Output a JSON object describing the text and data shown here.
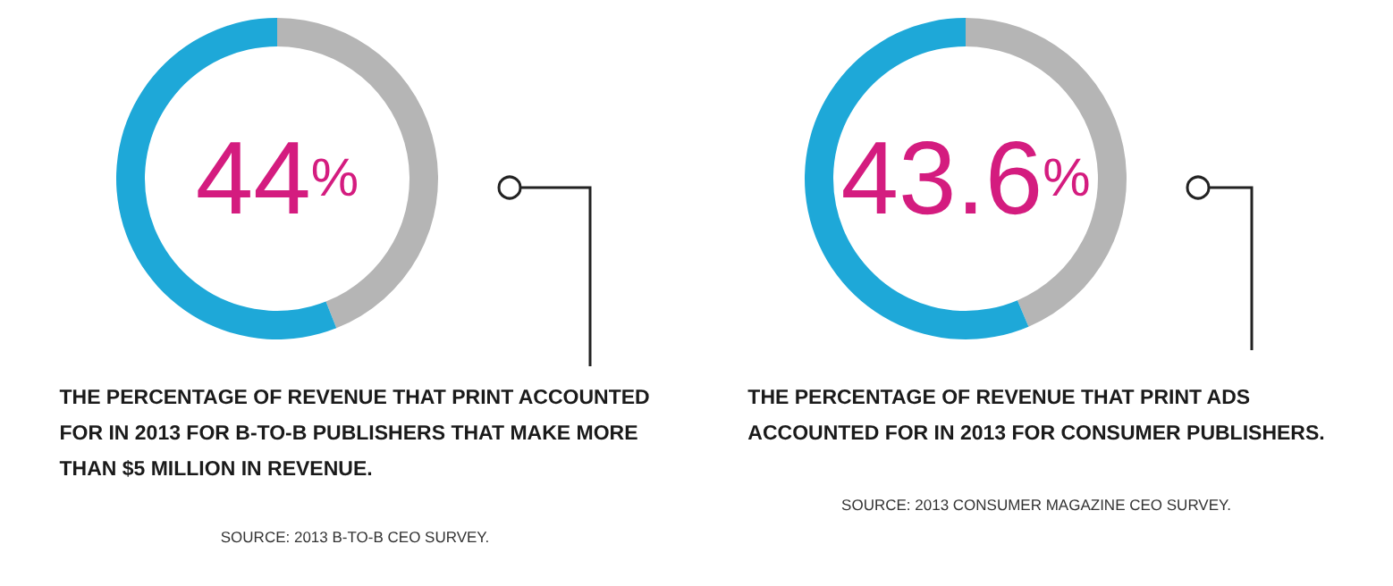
{
  "chart_data": [
    {
      "type": "donut",
      "categories": [
        null,
        null
      ],
      "values": [
        44,
        56
      ],
      "colors": [
        "#b5b5b5",
        "#1ea8d8"
      ],
      "value_labels": [
        "44%",
        null
      ],
      "annotations": [
        "THE PERCENTAGE OF REVENUE THAT PRINT ACCOUNTED\nFOR IN 2013 FOR B-TO-B PUBLISHERS THAT MAKE MORE\nTHAN $5 MILLION IN REVENUE.",
        "SOURCE: 2013 B-TO-B CEO SURVEY."
      ]
    },
    {
      "type": "donut",
      "categories": [
        null,
        null
      ],
      "values": [
        43.6,
        56.4
      ],
      "colors": [
        "#b5b5b5",
        "#1ea8d8"
      ],
      "value_labels": [
        "43.6%",
        null
      ],
      "annotations": [
        "THE PERCENTAGE OF REVENUE THAT PRINT ADS\nACCOUNTED FOR IN 2013 FOR CONSUMER PUBLISHERS.",
        "SOURCE: 2013 CONSUMER MAGAZINE CEO SURVEY."
      ]
    }
  ]
}
